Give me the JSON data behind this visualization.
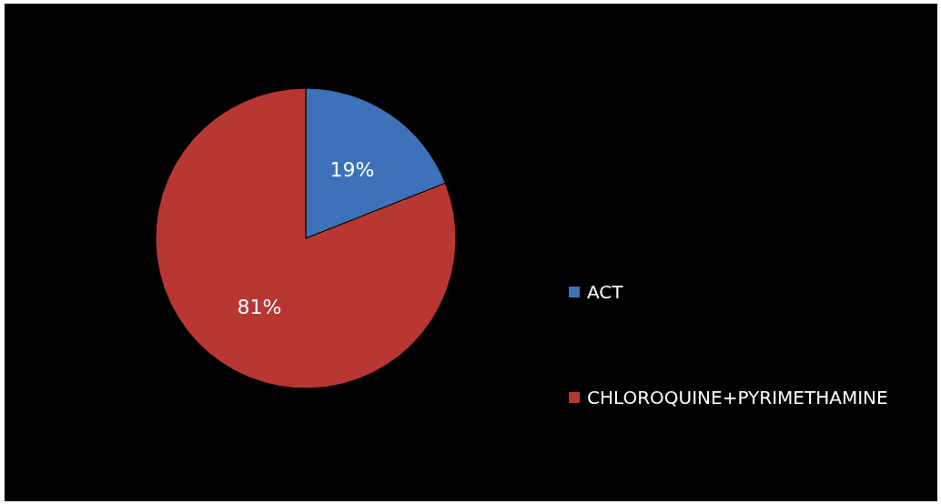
{
  "chart_data": {
    "type": "pie",
    "categories": [
      "ACT",
      "CHLOROQUINE+PYRIMETHAMINE"
    ],
    "values": [
      19,
      81
    ],
    "colors": [
      "#3d72b8",
      "#b83732"
    ],
    "value_labels": [
      "19%",
      "81%"
    ],
    "legend": "right"
  }
}
